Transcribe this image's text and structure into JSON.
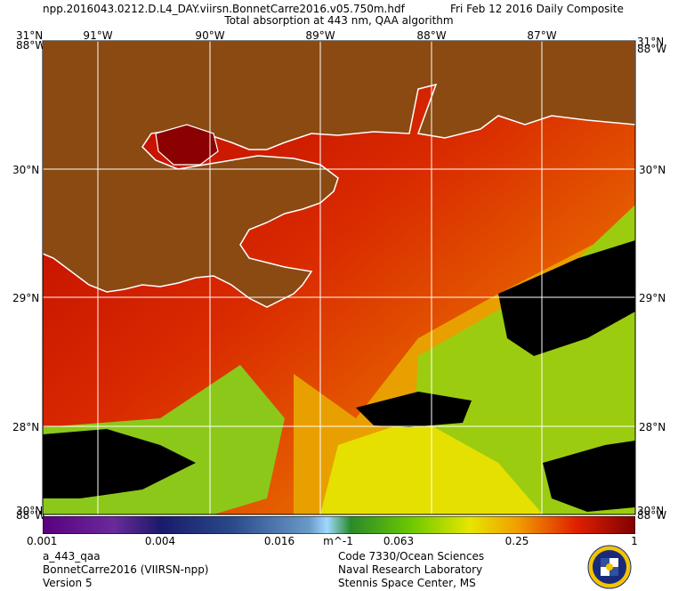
{
  "header": {
    "filename": "npp.2016043.0212.D.L4_DAY.viirsn.BonnetCarre2016.v05.750m.hdf",
    "date": "Fri Feb 12 2016 Daily Composite",
    "product": "Total absorption at 443 nm, QAA algorithm"
  },
  "map": {
    "lon_labels_top": [
      "91°W",
      "90°W",
      "89°W",
      "88°W",
      "87°W"
    ],
    "corner_top_left_lat": "31°N",
    "corner_top_left_lon": "88°W",
    "corner_top_right_lat": "31°N",
    "corner_top_right_lon": "88°W",
    "lat_labels_left": [
      "30°N",
      "29°N",
      "28°N"
    ],
    "lat_labels_right": [
      "30°N",
      "29°N",
      "28°N"
    ],
    "corner_bottom_left_lat": "30°N",
    "corner_bottom_left_lon": "88°W",
    "corner_bottom_right_lat": "30°N",
    "corner_bottom_right_lon": "88°W",
    "colors": {
      "land": "#8a4a12",
      "coast": "#ffffff",
      "cloud": "#000000"
    }
  },
  "colorbar": {
    "tick_labels": [
      "0.001",
      "0.004",
      "0.016",
      "m^-1",
      "0.063",
      "0.25",
      "1"
    ],
    "scale": "log",
    "range": [
      0.001,
      1
    ]
  },
  "footer": {
    "variable": "a_443_qaa",
    "region": "BonnetCarre2016 (VIIRSN-npp)",
    "version": "Version 5",
    "org_line1": "Code 7330/Ocean Sciences",
    "org_line2": "Naval Research Laboratory",
    "org_line3": "Stennis Space Center, MS"
  }
}
